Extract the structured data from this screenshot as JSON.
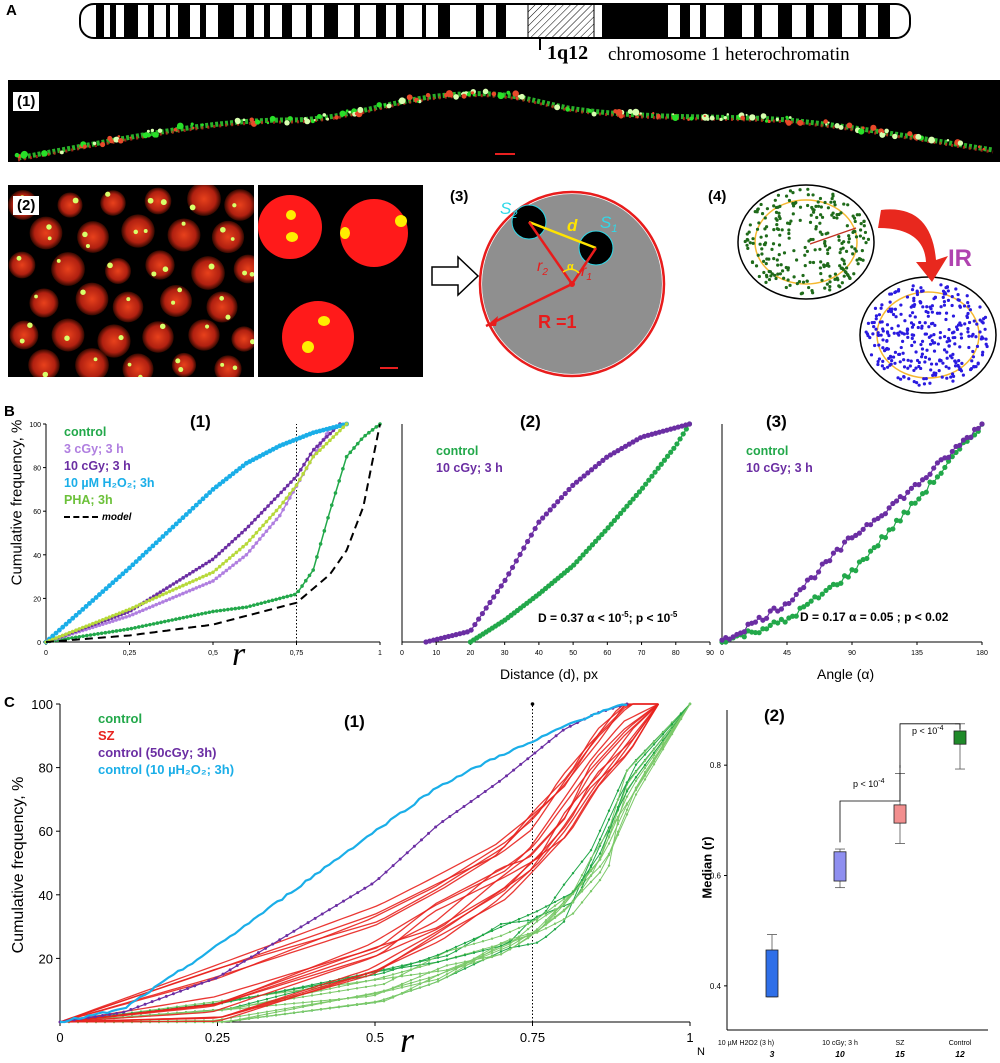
{
  "panelA": {
    "letter": "A",
    "band": "1q12",
    "band_desc": "chromosome 1 heterochromatin",
    "sub1": "(1)",
    "sub2": "(2)",
    "sub3": "(3)",
    "sub4": "(4)",
    "labels3": {
      "S2": "S",
      "S2_sub": "2",
      "S1": "S",
      "S1_sub": "1",
      "d": "d",
      "r2": "r",
      "r2_sub": "2",
      "r1": "r",
      "r1_sub": "1",
      "alpha": "α",
      "R": "R =1"
    },
    "ir_label": "IR"
  },
  "panelB": {
    "letter": "B",
    "ylabel": "Cumulative frequency, %",
    "chart1": {
      "title": "(1)",
      "legend": [
        {
          "label": "control",
          "color": "#22a84a"
        },
        {
          "label": "3 cGy; 3 h",
          "color": "#b07fe0"
        },
        {
          "label": "10 cGy; 3 h",
          "color": "#6b2ea3"
        },
        {
          "label": "10 µM H₂O₂; 3h",
          "color": "#1aaee8"
        },
        {
          "label": "PHA; 3h",
          "color": "#6cc13a"
        },
        {
          "label": "model",
          "color": "#000000"
        }
      ],
      "xlabel": "r",
      "xticks": [
        "0",
        "0,25",
        "0,5",
        "0,75",
        "1"
      ],
      "yticks": [
        "0",
        "20",
        "40",
        "60",
        "80",
        "100"
      ],
      "marker_x": "0.75"
    },
    "chart2": {
      "title": "(2)",
      "legend": [
        {
          "label": "control",
          "color": "#22a84a"
        },
        {
          "label": "10 cGy; 3 h",
          "color": "#6b2ea3"
        }
      ],
      "stat": "D = 0.37  α < 10",
      "stat_exp": "-5",
      "stat_p": ";   p < 10",
      "stat_p_exp": "-5",
      "xlabel": "Distance (d), px",
      "xticks": [
        "0",
        "10",
        "20",
        "30",
        "40",
        "50",
        "60",
        "70",
        "80",
        "90"
      ]
    },
    "chart3": {
      "title": "(3)",
      "legend": [
        {
          "label": "control",
          "color": "#22a84a"
        },
        {
          "label": "10 cGy; 3 h",
          "color": "#6b2ea3"
        }
      ],
      "stat": "D = 0.17  α = 0.05 ;   p < 0.02",
      "xlabel": "Angle (α)",
      "xticks": [
        "0",
        "45",
        "90",
        "135",
        "180"
      ]
    }
  },
  "panelC": {
    "letter": "C",
    "chart1": {
      "title": "(1)",
      "ylabel": "Cumulative frequency, %",
      "legend": [
        {
          "label": "control",
          "color": "#22a84a"
        },
        {
          "label": "SZ",
          "color": "#e8221e"
        },
        {
          "label": "control (50cGy; 3h)",
          "color": "#6b2ea3"
        },
        {
          "label": "control (10 µH₂O₂; 3h)",
          "color": "#1aaee8"
        }
      ],
      "xticks": [
        "0",
        "0.25",
        "0.5",
        "0.75",
        "1"
      ],
      "yticks": [
        "20",
        "40",
        "60",
        "80",
        "100"
      ],
      "xlabel": "r"
    },
    "chart2": {
      "title": "(2)",
      "ylabel": "Median (r)",
      "yticks": [
        "0.4",
        "0.6",
        "0.8"
      ],
      "groups": [
        {
          "label": "10 µM  H2O2 (3 h)",
          "n": "3",
          "color": "#2f6fe8",
          "q1": 0.38,
          "q3": 0.465,
          "lo": 0.38,
          "hi": 0.493
        },
        {
          "label": "10 cGy; 3 h",
          "n": "10",
          "color": "#8f8ff0",
          "q1": 0.59,
          "q3": 0.643,
          "lo": 0.578,
          "hi": 0.648
        },
        {
          "label": "SZ",
          "n": "15",
          "color": "#f28f8f",
          "q1": 0.695,
          "q3": 0.728,
          "lo": 0.658,
          "hi": 0.785
        },
        {
          "label": "Control",
          "n": "12",
          "color": "#1f8a2a",
          "q1": 0.838,
          "q3": 0.862,
          "lo": 0.793,
          "hi": 0.875
        }
      ],
      "n_label": "N",
      "p1": "p < 10",
      "p1_exp": "-4",
      "p2": "p < 10",
      "p2_exp": "-4"
    }
  },
  "chart_data": [
    {
      "type": "line",
      "title": "(1)",
      "xlabel": "r",
      "ylabel": "Cumulative frequency, %",
      "xlim": [
        0,
        1
      ],
      "ylim": [
        0,
        100
      ],
      "series": [
        {
          "name": "control",
          "x": [
            0,
            0.25,
            0.5,
            0.6,
            0.75,
            0.8,
            0.85,
            0.9,
            0.95,
            1
          ],
          "y": [
            0,
            6,
            14,
            16,
            22,
            33,
            60,
            85,
            94,
            100
          ]
        },
        {
          "name": "3 cGy; 3 h",
          "x": [
            0,
            0.25,
            0.5,
            0.6,
            0.7,
            0.8,
            0.85,
            0.9
          ],
          "y": [
            0,
            12,
            28,
            40,
            58,
            85,
            98,
            100
          ]
        },
        {
          "name": "10 cGy; 3 h",
          "x": [
            0,
            0.25,
            0.5,
            0.6,
            0.7,
            0.75,
            0.8,
            0.88
          ],
          "y": [
            0,
            14,
            38,
            52,
            68,
            76,
            88,
            100
          ]
        },
        {
          "name": "10 µM H₂O₂; 3h",
          "x": [
            0,
            0.25,
            0.5,
            0.6,
            0.7,
            0.75,
            0.8,
            0.9
          ],
          "y": [
            0,
            34,
            70,
            82,
            90,
            93,
            96,
            100
          ]
        },
        {
          "name": "PHA; 3h",
          "x": [
            0,
            0.25,
            0.5,
            0.6,
            0.7,
            0.75,
            0.8,
            0.9
          ],
          "y": [
            0,
            15,
            32,
            45,
            62,
            72,
            85,
            100
          ]
        },
        {
          "name": "model",
          "x": [
            0,
            0.25,
            0.5,
            0.6,
            0.75,
            0.85,
            0.9,
            0.95,
            1
          ],
          "y": [
            0,
            3,
            8,
            12,
            18,
            31,
            42,
            62,
            100
          ]
        }
      ]
    },
    {
      "type": "line",
      "title": "(2)",
      "xlabel": "Distance (d), px",
      "xlim": [
        0,
        90
      ],
      "ylim": [
        0,
        100
      ],
      "series": [
        {
          "name": "control",
          "x": [
            20,
            30,
            40,
            50,
            60,
            70,
            80,
            84
          ],
          "y": [
            0,
            10,
            22,
            35,
            52,
            70,
            90,
            100
          ]
        },
        {
          "name": "10 cGy; 3 h",
          "x": [
            7,
            20,
            30,
            40,
            50,
            60,
            70,
            84
          ],
          "y": [
            0,
            5,
            28,
            55,
            72,
            85,
            94,
            100
          ]
        }
      ],
      "annotation": "D = 0.37  α < 10-5;   p < 10-5"
    },
    {
      "type": "line",
      "title": "(3)",
      "xlabel": "Angle (α)",
      "xlim": [
        0,
        180
      ],
      "ylim": [
        0,
        100
      ],
      "series": [
        {
          "name": "control",
          "x": [
            0,
            45,
            90,
            135,
            180
          ],
          "y": [
            0,
            10,
            32,
            65,
            100
          ]
        },
        {
          "name": "10 cGy; 3 h",
          "x": [
            0,
            45,
            90,
            135,
            180
          ],
          "y": [
            0,
            18,
            48,
            72,
            100
          ]
        }
      ],
      "annotation": "D = 0.17  α = 0.05 ;   p < 0.02"
    },
    {
      "type": "line",
      "title": "(1)",
      "xlabel": "r",
      "ylabel": "Cumulative frequency, %",
      "xlim": [
        0,
        1
      ],
      "ylim": [
        0,
        100
      ],
      "series": [
        {
          "name": "control (10 µH₂O₂; 3h)",
          "x": [
            0,
            0.1,
            0.25,
            0.5,
            0.6,
            0.7,
            0.75,
            0.8,
            0.85,
            0.9
          ],
          "y": [
            0,
            4,
            24,
            60,
            74,
            84,
            88,
            93,
            97,
            100
          ]
        },
        {
          "name": "control (50cGy; 3h)",
          "x": [
            0,
            0.1,
            0.25,
            0.5,
            0.6,
            0.7,
            0.75,
            0.8,
            0.85,
            0.9
          ],
          "y": [
            0,
            3,
            14,
            44,
            62,
            76,
            84,
            92,
            97,
            100
          ]
        },
        {
          "name": "SZ",
          "x": [
            0,
            0.25,
            0.5,
            0.6,
            0.7,
            0.75,
            0.8,
            0.85,
            0.9,
            0.95
          ],
          "y": [
            0,
            8,
            26,
            36,
            48,
            56,
            68,
            82,
            94,
            100
          ]
        },
        {
          "name": "control",
          "x": [
            0,
            0.25,
            0.5,
            0.6,
            0.7,
            0.75,
            0.8,
            0.85,
            0.9,
            1
          ],
          "y": [
            0,
            4,
            12,
            18,
            25,
            30,
            38,
            52,
            75,
            100
          ]
        }
      ]
    },
    {
      "type": "box",
      "title": "(2)",
      "ylabel": "Median (r)",
      "ylim": [
        0.32,
        0.9
      ],
      "categories": [
        "10 µM  H2O2 (3 h)",
        "10 cGy; 3 h",
        "SZ",
        "Control"
      ],
      "n": [
        3,
        10,
        15,
        12
      ]
    }
  ]
}
